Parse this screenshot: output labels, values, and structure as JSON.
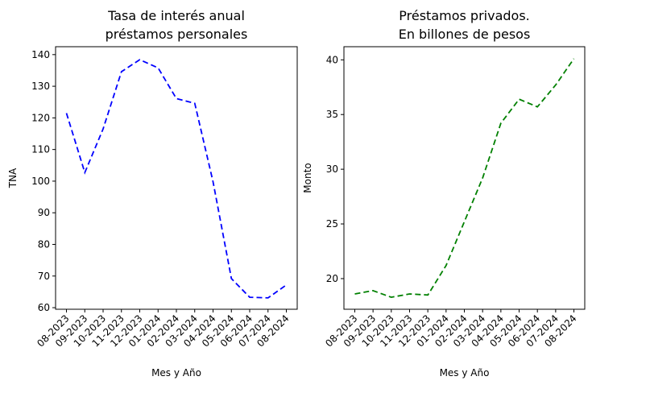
{
  "chart_data": [
    {
      "type": "line",
      "title_lines": [
        "Tasa de interés anual",
        "préstamos personales"
      ],
      "xlabel": "Mes y Año",
      "ylabel": "TNA",
      "categories": [
        "08-2023",
        "09-2023",
        "10-2023",
        "11-2023",
        "12-2023",
        "01-2024",
        "02-2024",
        "03-2024",
        "04-2024",
        "05-2024",
        "06-2024",
        "07-2024",
        "08-2024"
      ],
      "ylim": [
        59.5,
        142.5
      ],
      "yticks": [
        60,
        70,
        80,
        90,
        100,
        110,
        120,
        130,
        140
      ],
      "series": [
        {
          "color": "#0000ff",
          "linestyle": "dashed",
          "values": [
            121.5,
            102.7,
            116.5,
            134.6,
            138.4,
            135.8,
            126.1,
            124.6,
            99.8,
            69.2,
            63.3,
            63.1,
            67.2
          ]
        }
      ],
      "grid": false
    },
    {
      "type": "line",
      "title_lines": [
        "Préstamos privados.",
        "En billones de pesos"
      ],
      "xlabel": "Mes y Año",
      "ylabel": "Monto",
      "categories": [
        "08-2023",
        "09-2023",
        "10-2023",
        "11-2023",
        "12-2023",
        "01-2024",
        "02-2024",
        "03-2024",
        "04-2024",
        "05-2024",
        "06-2024",
        "07-2024",
        "08-2024"
      ],
      "ylim": [
        17.2,
        41.2
      ],
      "yticks": [
        20,
        25,
        30,
        35,
        40
      ],
      "series": [
        {
          "color": "#008000",
          "linestyle": "dashed",
          "values": [
            18.6,
            18.9,
            18.3,
            18.6,
            18.5,
            21.2,
            25.2,
            29.2,
            34.2,
            36.4,
            35.7,
            37.7,
            40.1
          ]
        }
      ],
      "grid": false
    }
  ]
}
